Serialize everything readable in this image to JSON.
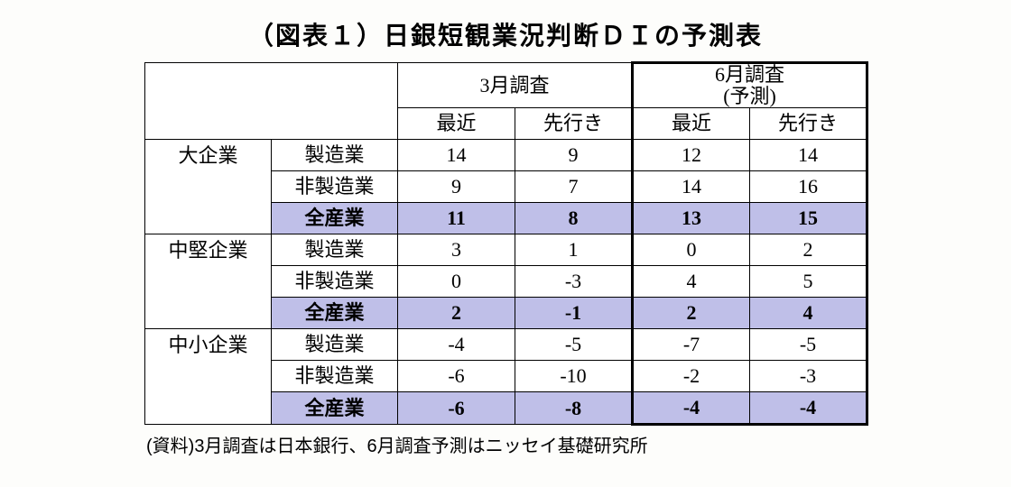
{
  "title": "（図表１）日銀短観業況判断ＤＩの予測表",
  "footnote": "(資料)3月調査は日本銀行、6月調査予測はニッセイ基礎研究所",
  "colors": {
    "highlight": "#bfbfe8",
    "border": "#000000",
    "background": "#fdfdfb"
  },
  "header": {
    "group1": "3月調査",
    "group2_line1": "6月調査",
    "group2_line2": "(予測)",
    "sub_recent": "最近",
    "sub_future": "先行き"
  },
  "categories": {
    "large": "大企業",
    "medium": "中堅企業",
    "small": "中小企業"
  },
  "subs": {
    "mfg": "製造業",
    "nonmfg": "非製造業",
    "all": "全産業"
  },
  "rows": {
    "large_mfg": {
      "m3_recent": "14",
      "m3_future": "9",
      "m6_recent": "12",
      "m6_future": "14"
    },
    "large_nonmfg": {
      "m3_recent": "9",
      "m3_future": "7",
      "m6_recent": "14",
      "m6_future": "16"
    },
    "large_all": {
      "m3_recent": "11",
      "m3_future": "8",
      "m6_recent": "13",
      "m6_future": "15"
    },
    "medium_mfg": {
      "m3_recent": "3",
      "m3_future": "1",
      "m6_recent": "0",
      "m6_future": "2"
    },
    "medium_nonmfg": {
      "m3_recent": "0",
      "m3_future": "-3",
      "m6_recent": "4",
      "m6_future": "5"
    },
    "medium_all": {
      "m3_recent": "2",
      "m3_future": "-1",
      "m6_recent": "2",
      "m6_future": "4"
    },
    "small_mfg": {
      "m3_recent": "-4",
      "m3_future": "-5",
      "m6_recent": "-7",
      "m6_future": "-5"
    },
    "small_nonmfg": {
      "m3_recent": "-6",
      "m3_future": "-10",
      "m6_recent": "-2",
      "m6_future": "-3"
    },
    "small_all": {
      "m3_recent": "-6",
      "m3_future": "-8",
      "m6_recent": "-4",
      "m6_future": "-4"
    }
  }
}
